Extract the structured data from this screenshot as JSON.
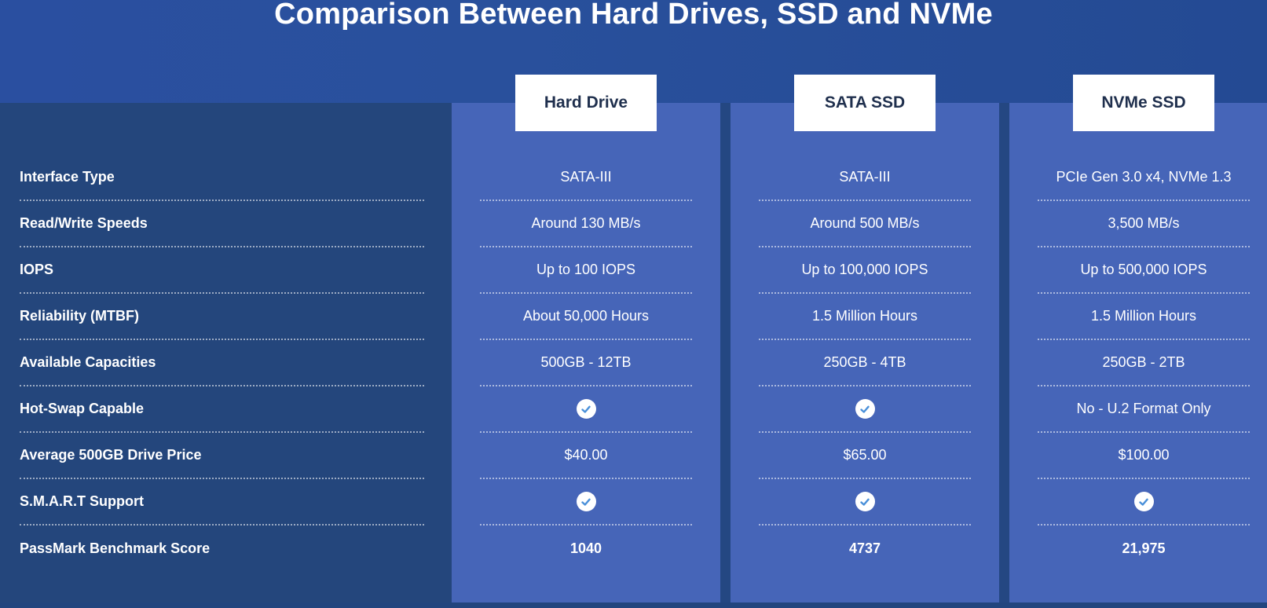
{
  "title": "Comparison Between Hard Drives, SSD and NVMe",
  "colors": {
    "background": "#244782",
    "header_band": "#2a4fa0",
    "label_panel": "#24467c",
    "column": "#4665b8",
    "heading_box": "#ffffff",
    "check_icon": "#4a90d9"
  },
  "columns": [
    {
      "name": "Hard Drive"
    },
    {
      "name": "SATA SSD"
    },
    {
      "name": "NVMe SSD"
    }
  ],
  "rows": [
    {
      "label": "Interface Type",
      "values": [
        "SATA-III",
        "SATA-III",
        "PCIe Gen 3.0 x4, NVMe 1.3"
      ]
    },
    {
      "label": "Read/Write Speeds",
      "values": [
        "Around 130 MB/s",
        "Around 500 MB/s",
        "3,500 MB/s"
      ]
    },
    {
      "label": "IOPS",
      "values": [
        "Up to 100 IOPS",
        "Up to 100,000 IOPS",
        "Up to 500,000 IOPS"
      ]
    },
    {
      "label": "Reliability (MTBF)",
      "values": [
        "About 50,000 Hours",
        "1.5 Million Hours",
        "1.5 Million Hours"
      ]
    },
    {
      "label": "Available Capacities",
      "values": [
        "500GB - 12TB",
        "250GB - 4TB",
        "250GB - 2TB"
      ]
    },
    {
      "label": "Hot-Swap Capable",
      "values": [
        "check-icon",
        "check-icon",
        "No - U.2 Format Only"
      ]
    },
    {
      "label": "Average 500GB Drive Price",
      "values": [
        "$40.00",
        "$65.00",
        "$100.00"
      ]
    },
    {
      "label": "S.M.A.R.T Support",
      "values": [
        "check-icon",
        "check-icon",
        "check-icon"
      ]
    },
    {
      "label": "PassMark Benchmark Score",
      "values": [
        "1040",
        "4737",
        "21,975"
      ]
    }
  ]
}
